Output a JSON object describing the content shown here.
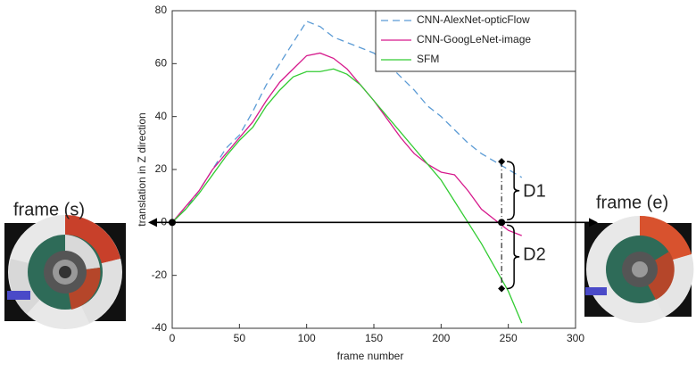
{
  "chart_data": {
    "type": "line",
    "x_label": "frame number",
    "y_label": "translation in Z direction",
    "x": [
      0,
      10,
      20,
      30,
      40,
      50,
      60,
      70,
      80,
      90,
      100,
      110,
      120,
      130,
      140,
      150,
      160,
      170,
      180,
      190,
      200,
      210,
      220,
      230,
      240,
      250,
      260
    ],
    "series": [
      {
        "name": "CNN-AlexNet-opticFlow",
        "color": "#5b9bd5",
        "dashed": true,
        "values": [
          0,
          5,
          12,
          20,
          28,
          33,
          42,
          52,
          60,
          68,
          76,
          74,
          70,
          68,
          66,
          64,
          60,
          55,
          50,
          44,
          40,
          35,
          30,
          26,
          23,
          20,
          17
        ]
      },
      {
        "name": "CNN-GoogLeNet-image",
        "color": "#d6198c",
        "dashed": false,
        "values": [
          0,
          6,
          12,
          20,
          26,
          32,
          38,
          46,
          53,
          58,
          63,
          64,
          62,
          58,
          52,
          46,
          39,
          32,
          26,
          22,
          19,
          18,
          12,
          5,
          1,
          -3,
          -5
        ]
      },
      {
        "name": "SFM",
        "color": "#33cc33",
        "dashed": false,
        "values": [
          0,
          5,
          11,
          18,
          25,
          31,
          36,
          44,
          50,
          55,
          57,
          57,
          58,
          56,
          52,
          46,
          40,
          34,
          28,
          22,
          16,
          8,
          0,
          -8,
          -17,
          -26,
          -38
        ]
      }
    ],
    "xlim": [
      0,
      300
    ],
    "ylim": [
      -40,
      80
    ],
    "xticks": [
      0,
      50,
      100,
      150,
      200,
      250,
      300
    ],
    "yticks": [
      -40,
      -20,
      0,
      20,
      40,
      60,
      80
    ],
    "legend": "top-right",
    "markers": {
      "x": [
        0,
        245,
        245,
        245
      ],
      "y": [
        0,
        0,
        23,
        -25
      ]
    },
    "annotations": {
      "d1": "D1",
      "d2": "D2",
      "start": "frame (s)",
      "end": "frame (e)"
    }
  }
}
